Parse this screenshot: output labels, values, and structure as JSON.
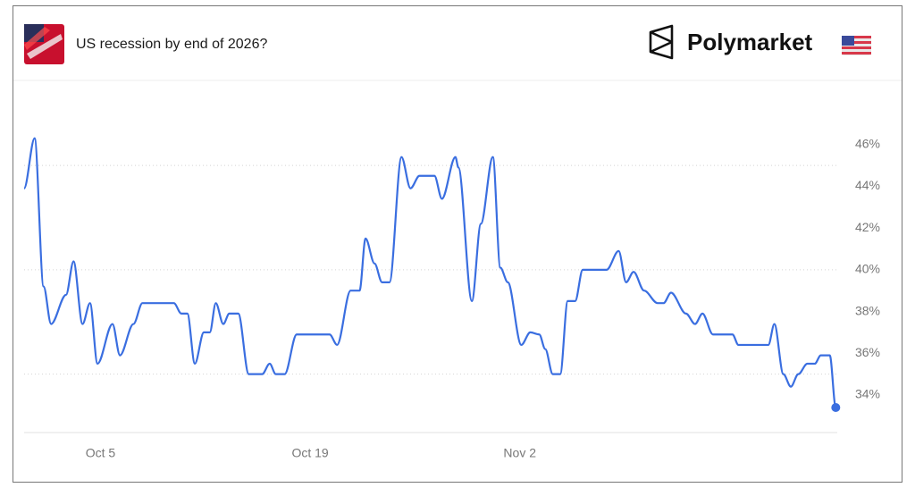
{
  "brand": "Polymarket",
  "chart_data": {
    "type": "line",
    "title": "US recession by end of 2026?",
    "color": "#3a6ee0",
    "x": [
      -0.1,
      0.6,
      1.2,
      1.7,
      2.7,
      3.2,
      3.8,
      4.3,
      4.8,
      5.8,
      6.3,
      7.2,
      7.8,
      9.9,
      10.4,
      10.8,
      11.3,
      11.9,
      12.3,
      12.7,
      13.2,
      13.6,
      14.2,
      14.9,
      15.8,
      16.3,
      16.7,
      17.3,
      18.1,
      20.3,
      20.8,
      21.7,
      22.3,
      22.7,
      23.3,
      23.8,
      24.3,
      25.1,
      25.7,
      26.3,
      27.3,
      27.8,
      28.7,
      28.9,
      29.8,
      30.4,
      31.2,
      31.7,
      32.2,
      33.1,
      33.7,
      34.3,
      34.7,
      35.2,
      35.7,
      36.2,
      36.7,
      37.2,
      38.8,
      39.6,
      40.1,
      40.6,
      41.3,
      42.2,
      42.6,
      43.1,
      44.1,
      44.7,
      45.2,
      45.9,
      47.2,
      47.6,
      49.6,
      50.0,
      50.6,
      51.1,
      51.6,
      52.2,
      52.7,
      53.1,
      53.7,
      54.1
    ],
    "values": [
      43.9,
      46.3,
      39.2,
      37.4,
      38.8,
      40.4,
      37.4,
      38.4,
      35.5,
      37.4,
      35.9,
      37.4,
      38.4,
      38.4,
      37.9,
      37.9,
      35.5,
      37.0,
      37.0,
      38.4,
      37.4,
      37.9,
      37.9,
      35.0,
      35.0,
      35.5,
      35.0,
      35.0,
      36.9,
      36.9,
      36.4,
      39.0,
      39.0,
      41.5,
      40.3,
      39.4,
      39.4,
      45.4,
      43.9,
      44.5,
      44.5,
      43.4,
      45.4,
      44.9,
      38.5,
      42.2,
      45.4,
      40.1,
      39.4,
      36.4,
      37.0,
      36.9,
      36.2,
      35.0,
      35.0,
      38.5,
      38.5,
      40.0,
      40.0,
      40.9,
      39.4,
      39.9,
      39.0,
      38.4,
      38.4,
      38.9,
      37.9,
      37.4,
      37.9,
      36.9,
      36.9,
      36.4,
      36.4,
      37.4,
      35.0,
      34.4,
      35.0,
      35.5,
      35.5,
      35.9,
      35.9,
      33.4
    ],
    "xlim": [
      -0.1,
      54.2
    ],
    "xticks": [
      {
        "value": 5,
        "label": "Oct 5"
      },
      {
        "value": 19,
        "label": "Oct 19"
      },
      {
        "value": 33,
        "label": "Nov 2"
      }
    ],
    "ylim": [
      32.2,
      48.6
    ],
    "yticks": [
      {
        "value": 34,
        "label": "34%"
      },
      {
        "value": 36,
        "label": "36%"
      },
      {
        "value": 38,
        "label": "38%"
      },
      {
        "value": 40,
        "label": "40%"
      },
      {
        "value": 42,
        "label": "42%"
      },
      {
        "value": 44,
        "label": "44%"
      },
      {
        "value": 46,
        "label": "46%"
      }
    ],
    "ygrid": [
      35,
      40,
      45
    ]
  }
}
